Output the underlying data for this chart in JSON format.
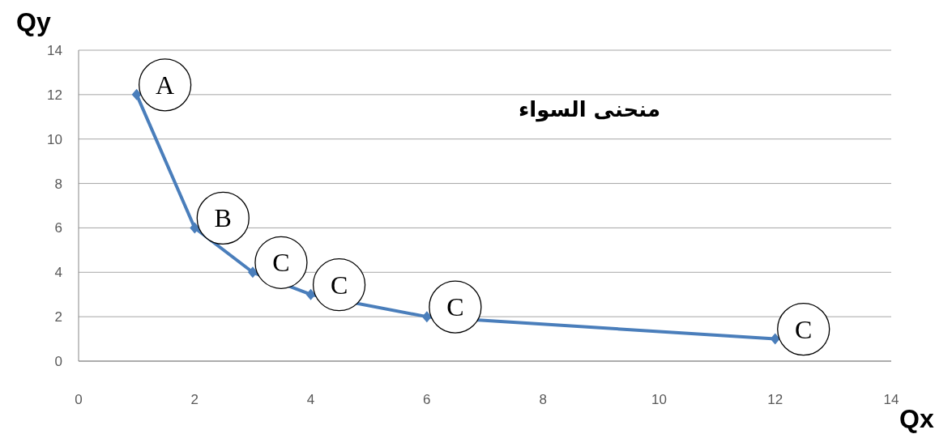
{
  "chart_data": {
    "type": "line",
    "title": "منحنى السواء",
    "xlabel": "Qx",
    "ylabel": "Qy",
    "x": [
      1,
      2,
      3,
      4,
      6,
      12
    ],
    "series": [
      {
        "color": "#4a7ebb",
        "values": [
          12,
          6,
          4,
          3,
          2,
          1
        ]
      }
    ],
    "xlim": [
      0,
      14
    ],
    "xticks": [
      0,
      2,
      4,
      6,
      8,
      10,
      12,
      14
    ],
    "ylim": [
      0,
      14
    ],
    "yticks": [
      0,
      2,
      4,
      6,
      8,
      10,
      12,
      14
    ],
    "grid": "y",
    "marker": "diamond",
    "annotations": [
      {
        "text": "A",
        "x": 1,
        "y": 12
      },
      {
        "text": "B",
        "x": 2,
        "y": 6
      },
      {
        "text": "C",
        "x": 3,
        "y": 4
      },
      {
        "text": "C",
        "x": 4,
        "y": 3
      },
      {
        "text": "C",
        "x": 6,
        "y": 2
      },
      {
        "text": "C",
        "x": 12,
        "y": 1
      }
    ]
  }
}
